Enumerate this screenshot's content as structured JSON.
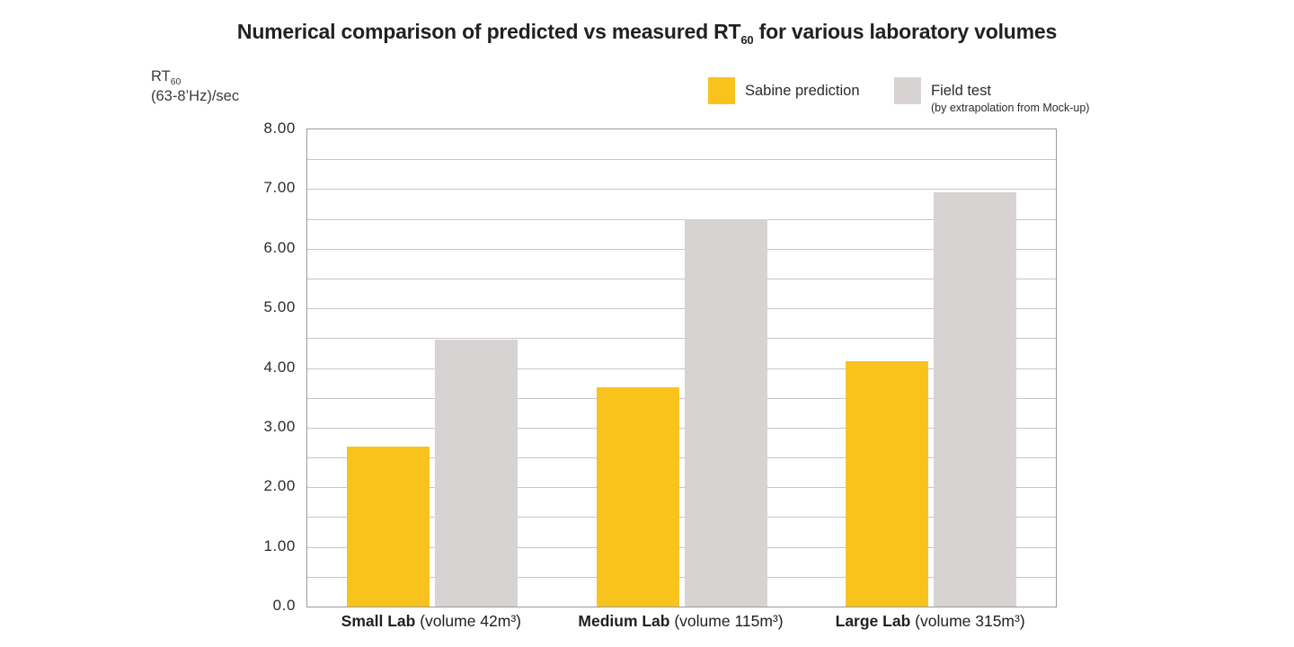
{
  "title": {
    "pre_sub": "Numerical comparison of predicted vs measured RT",
    "sub": "60",
    "post_sub": " for various laboratory volumes"
  },
  "y_axis_label": {
    "line1_main": "RT",
    "line1_sub": "60",
    "line2": "(63-8’Hz)/sec"
  },
  "legend": {
    "items": [
      {
        "label": "Sabine prediction",
        "note": "",
        "color": "#F9C31E"
      },
      {
        "label": "Field test",
        "note": "(by extrapolation from Mock-up)",
        "color": "#D6D3D2"
      }
    ]
  },
  "chart_data": {
    "type": "bar",
    "title": "Numerical comparison of predicted vs measured RT60 for various laboratory volumes",
    "ylabel": "RT60 (63-8’Hz)/sec",
    "categories": [
      "Small Lab (volume 42m³)",
      "Medium Lab (volume 115m³)",
      "Large Lab (volume 315m³)"
    ],
    "category_labels": [
      {
        "bold": "Small Lab",
        "rest": " (volume 42m³)"
      },
      {
        "bold": "Medium Lab",
        "rest": " (volume 115m³)"
      },
      {
        "bold": "Large Lab",
        "rest": " (volume 315m³)"
      }
    ],
    "series": [
      {
        "name": "Sabine prediction",
        "color": "#F9C31E",
        "values": [
          2.68,
          3.68,
          4.12
        ]
      },
      {
        "name": "Field test (by extrapolation from Mock-up)",
        "color": "#D6D3D2",
        "values": [
          4.47,
          6.5,
          6.95
        ]
      }
    ],
    "ylim": [
      0,
      8
    ],
    "grid": true,
    "grid_interval": 0.5,
    "legend_position": "top-right",
    "y_ticks": [
      {
        "value": 8,
        "label": "8.00"
      },
      {
        "value": 7,
        "label": "7.00"
      },
      {
        "value": 6,
        "label": "6.00"
      },
      {
        "value": 5,
        "label": "5.00"
      },
      {
        "value": 4,
        "label": "4.00"
      },
      {
        "value": 3,
        "label": "3.00"
      },
      {
        "value": 2,
        "label": "2.00"
      },
      {
        "value": 1,
        "label": "1.00"
      },
      {
        "value": 0,
        "label": "0.0"
      }
    ]
  },
  "colors": {
    "grid": "#c7c7c7",
    "plot_border": "#9b9b9b",
    "text": "#231f20",
    "bar_yellow": "#F9C31E",
    "bar_gray": "#D6D3D2"
  }
}
